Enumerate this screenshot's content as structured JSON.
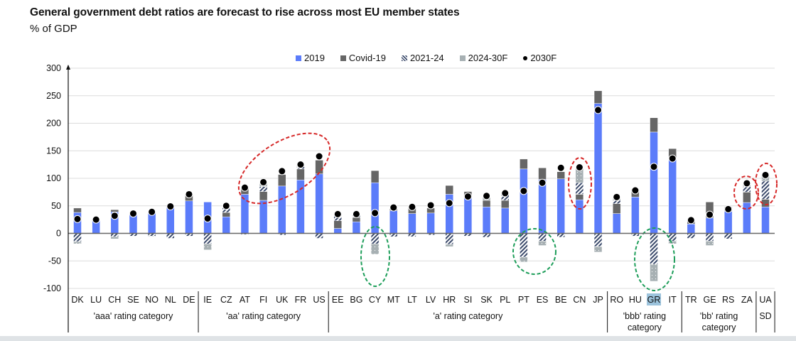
{
  "chart_data": {
    "type": "bar",
    "stacked": true,
    "title": "General government debt ratios are forecast to rise across most EU member states",
    "subtitle": "% of GDP",
    "ylabel": "",
    "ylim": [
      -100,
      300
    ],
    "yticks": [
      300,
      250,
      200,
      150,
      100,
      50,
      0,
      -50,
      -100
    ],
    "grid": true,
    "legend_position": "top",
    "legend": [
      {
        "name": "2019",
        "key": "y2019",
        "color": "#5b7cfa",
        "style": "solid"
      },
      {
        "name": "Covid-19",
        "key": "covid",
        "color": "#666666",
        "style": "solid"
      },
      {
        "name": "2021-24",
        "key": "p2124",
        "color": "#3b4a6b",
        "style": "hatch"
      },
      {
        "name": "2024-30F",
        "key": "p2430",
        "color": "#a7b0b3",
        "style": "dotted"
      },
      {
        "name": "2030F",
        "key": "f2030",
        "color": "#000000",
        "style": "marker"
      }
    ],
    "categories": [
      "DK",
      "LU",
      "CH",
      "SE",
      "NO",
      "NL",
      "DE",
      "IE",
      "CZ",
      "AT",
      "FI",
      "UK",
      "FR",
      "US",
      "EE",
      "BG",
      "CY",
      "MT",
      "LT",
      "LV",
      "HR",
      "SI",
      "SK",
      "PL",
      "PT",
      "ES",
      "BE",
      "CN",
      "JP",
      "RO",
      "HU",
      "GR",
      "IT",
      "TR",
      "GE",
      "RS",
      "ZA",
      "UA"
    ],
    "highlighted_category": "GR",
    "groups": [
      {
        "label": "'aaa' rating category",
        "members": [
          "DK",
          "LU",
          "CH",
          "SE",
          "NO",
          "NL",
          "DE"
        ]
      },
      {
        "label": "'aa' rating category",
        "members": [
          "IE",
          "CZ",
          "AT",
          "FI",
          "UK",
          "FR",
          "US"
        ]
      },
      {
        "label": "'a' rating category",
        "members": [
          "EE",
          "BG",
          "CY",
          "MT",
          "LT",
          "LV",
          "HR",
          "SI",
          "SK",
          "PL",
          "PT",
          "ES",
          "BE",
          "CN",
          "JP"
        ]
      },
      {
        "label": "'bbb' rating category",
        "members": [
          "RO",
          "HU",
          "GR",
          "IT"
        ]
      },
      {
        "label": "'bb' rating category",
        "members": [
          "TR",
          "GE",
          "RS",
          "ZA"
        ]
      },
      {
        "label": "SD",
        "members": [
          "UA"
        ]
      }
    ],
    "series": [
      {
        "name": "2019",
        "values": [
          38,
          24,
          39,
          35,
          40,
          49,
          59,
          57,
          30,
          71,
          60,
          86,
          97,
          108,
          9,
          21,
          92,
          41,
          36,
          37,
          71,
          65,
          48,
          46,
          117,
          98,
          99,
          61,
          236,
          36,
          66,
          184,
          135,
          17,
          28,
          40,
          56,
          48
        ]
      },
      {
        "name": "Covid-19",
        "values": [
          8,
          0,
          4,
          0,
          0,
          0,
          12,
          0,
          8,
          12,
          16,
          21,
          20,
          25,
          14,
          8,
          22,
          6,
          14,
          9,
          16,
          11,
          12,
          14,
          18,
          21,
          13,
          10,
          23,
          18,
          14,
          26,
          19,
          7,
          29,
          8,
          19,
          14
        ]
      },
      {
        "name": "2021-24",
        "values": [
          -15,
          0,
          -6,
          -5,
          -5,
          -9,
          -5,
          -19,
          8,
          -2,
          9,
          -3,
          4,
          -9,
          8,
          5,
          -19,
          -6,
          -6,
          -3,
          -20,
          -5,
          -7,
          10,
          -43,
          -14,
          -7,
          21,
          -24,
          6,
          -5,
          -56,
          -14,
          -9,
          -14,
          -10,
          10,
          33
        ]
      },
      {
        "name": "2024-30F",
        "values": [
          -4,
          0,
          -4,
          0,
          -1,
          0,
          0,
          -11,
          4,
          0,
          9,
          0,
          3,
          0,
          7,
          3,
          -19,
          0,
          0,
          0,
          -4,
          0,
          5,
          3,
          -9,
          -8,
          0,
          30,
          -10,
          5,
          0,
          -31,
          -5,
          0,
          -8,
          0,
          8,
          12
        ]
      },
      {
        "name": "2030F",
        "values": [
          26,
          25,
          32,
          36,
          39,
          49,
          71,
          27,
          50,
          83,
          93,
          113,
          125,
          140,
          35,
          35,
          37,
          47,
          48,
          51,
          55,
          67,
          68,
          73,
          77,
          92,
          119,
          120,
          224,
          66,
          78,
          121,
          136,
          24,
          34,
          44,
          91,
          106
        ]
      }
    ],
    "annotations": [
      {
        "type": "ellipse",
        "color": "#d62828",
        "style": "dashed",
        "around": [
          "AT",
          "FI",
          "UK",
          "FR",
          "US"
        ]
      },
      {
        "type": "ellipse",
        "color": "#d62828",
        "style": "dashed",
        "around": [
          "CN"
        ]
      },
      {
        "type": "ellipse",
        "color": "#d62828",
        "style": "dashed",
        "around": [
          "ZA"
        ]
      },
      {
        "type": "ellipse",
        "color": "#d62828",
        "style": "dashed",
        "around": [
          "UA"
        ]
      },
      {
        "type": "ellipse",
        "color": "#1e9e5a",
        "style": "dashed",
        "around": [
          "CY"
        ]
      },
      {
        "type": "ellipse",
        "color": "#1e9e5a",
        "style": "dashed",
        "around": [
          "PT",
          "ES"
        ]
      },
      {
        "type": "ellipse",
        "color": "#1e9e5a",
        "style": "dashed",
        "around": [
          "GR"
        ]
      }
    ]
  }
}
